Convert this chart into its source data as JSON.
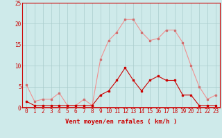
{
  "hours": [
    0,
    1,
    2,
    3,
    4,
    5,
    6,
    7,
    8,
    9,
    10,
    11,
    12,
    13,
    14,
    15,
    16,
    17,
    18,
    19,
    20,
    21,
    22,
    23
  ],
  "rafales": [
    5.5,
    1.5,
    2.0,
    2.0,
    3.5,
    0.5,
    0.5,
    2.0,
    0.5,
    11.5,
    16.0,
    18.0,
    21.0,
    21.0,
    18.0,
    16.0,
    16.5,
    18.5,
    18.5,
    15.5,
    10.0,
    5.0,
    2.0,
    3.0
  ],
  "moyen": [
    1.5,
    0.5,
    0.5,
    0.5,
    0.5,
    0.5,
    0.5,
    0.5,
    0.5,
    3.0,
    4.0,
    6.5,
    9.5,
    6.5,
    4.0,
    6.5,
    7.5,
    6.5,
    6.5,
    3.0,
    3.0,
    0.5,
    0.5,
    0.5
  ],
  "bg_color": "#ceeaea",
  "grid_color": "#aacccc",
  "line_color_rafales": "#f09090",
  "line_color_moyen": "#cc0000",
  "marker_color_rafales": "#d07070",
  "marker_color_moyen": "#cc0000",
  "xlabel": "Vent moyen/en rafales ( km/h )",
  "ylim": [
    0,
    25
  ],
  "yticks": [
    0,
    5,
    10,
    15,
    20,
    25
  ],
  "xlim": [
    -0.5,
    23.5
  ],
  "tick_fontsize": 5.5,
  "label_fontsize": 6.5
}
